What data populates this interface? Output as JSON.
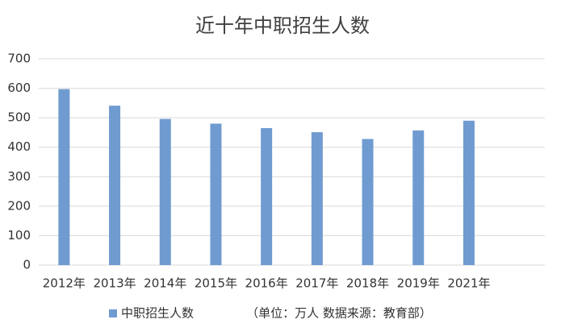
{
  "chart_data": {
    "type": "bar",
    "title": "近十年中职招生人数",
    "categories": [
      "2012年",
      "2013年",
      "2014年",
      "2015年",
      "2016年",
      "2017年",
      "2018年",
      "2019年",
      "2021年",
      null
    ],
    "series": [
      {
        "name": "中职招生人数",
        "color": "#6f9bd1",
        "values": [
          597,
          541,
          496,
          480,
          465,
          451,
          428,
          457,
          490,
          null
        ]
      }
    ],
    "annotation": "（单位：万人  数据来源：教育部）",
    "ylim": [
      0,
      700
    ],
    "yticks": [
      0,
      100,
      200,
      300,
      400,
      500,
      600,
      700
    ],
    "grid": true,
    "legend": "bottom"
  }
}
